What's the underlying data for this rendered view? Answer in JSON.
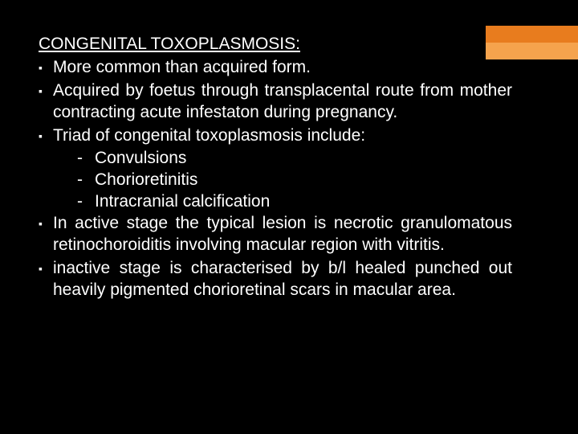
{
  "accent": {
    "top_color": "#e87c1e",
    "bottom_color": "#f5a34d"
  },
  "background_color": "#000000",
  "text_color": "#ffffff",
  "title": "CONGENITAL TOXOPLASMOSIS:",
  "bullets": [
    {
      "text": "More common than acquired form."
    },
    {
      "text": "Acquired by foetus through transplacental route from mother contracting acute infestaton during pregnancy."
    },
    {
      "text": "Triad of congenital toxoplasmosis include:"
    }
  ],
  "sublist": [
    "Convulsions",
    "Chorioretinitis",
    "Intracranial calcification"
  ],
  "bullets2": [
    {
      "text": "In active stage the typical lesion is necrotic granulomatous retinochoroiditis involving macular region with vitritis."
    },
    {
      "text": "inactive stage is  characterised by b/l healed punched out heavily pigmented chorioretinal scars in macular area."
    }
  ],
  "font_size_pt": 16,
  "bullet_marker": "▪",
  "sub_marker": "-"
}
